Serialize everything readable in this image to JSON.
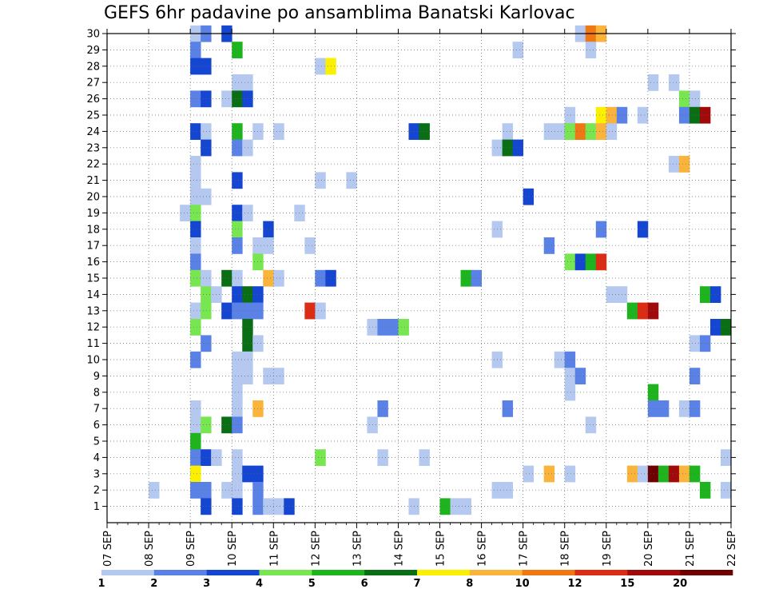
{
  "chart_data": {
    "type": "heatmap",
    "title": "GEFS 6hr padavine po ansamblima Banatski Karlovac",
    "x_tick_labels": [
      "07 SEP",
      "08 SEP",
      "09 SEP",
      "10 SEP",
      "11 SEP",
      "12 SEP",
      "13 SEP",
      "14 SEP",
      "15 SEP",
      "16 SEP",
      "17 SEP",
      "18 SEP",
      "19 SEP",
      "20 SEP",
      "21 SEP",
      "22 SEP"
    ],
    "y_tick_labels": [
      "1",
      "2",
      "3",
      "4",
      "5",
      "6",
      "7",
      "8",
      "9",
      "10",
      "11",
      "12",
      "13",
      "14",
      "15",
      "16",
      "17",
      "18",
      "19",
      "20",
      "21",
      "22",
      "23",
      "24",
      "25",
      "26",
      "27",
      "28",
      "29",
      "30"
    ],
    "ylim": [
      0,
      30
    ],
    "x_range_days": [
      0,
      15
    ],
    "grid": true,
    "legend_position": "bottom",
    "color_levels": [
      {
        "label": "1",
        "color": "#b4c8f0"
      },
      {
        "label": "2",
        "color": "#5a82e6"
      },
      {
        "label": "3",
        "color": "#1446d2"
      },
      {
        "label": "4",
        "color": "#78e650"
      },
      {
        "label": "5",
        "color": "#1eb41e"
      },
      {
        "label": "6",
        "color": "#0a6e14"
      },
      {
        "label": "7",
        "color": "#faf000"
      },
      {
        "label": "8",
        "color": "#fab43c"
      },
      {
        "label": "10",
        "color": "#f07814"
      },
      {
        "label": "12",
        "color": "#dc2d14"
      },
      {
        "label": "15",
        "color": "#a00a0a"
      },
      {
        "label": "20",
        "color": "#6e0000"
      }
    ],
    "cells": [
      [
        2.0,
        30,
        1
      ],
      [
        2.25,
        30,
        2
      ],
      [
        2.75,
        30,
        3
      ],
      [
        11.25,
        30,
        1
      ],
      [
        11.5,
        30,
        9
      ],
      [
        11.75,
        30,
        8
      ],
      [
        2.0,
        29,
        2
      ],
      [
        3.0,
        29,
        5
      ],
      [
        9.75,
        29,
        1
      ],
      [
        11.5,
        29,
        1
      ],
      [
        2.0,
        28,
        3
      ],
      [
        2.25,
        28,
        3
      ],
      [
        5.0,
        28,
        1
      ],
      [
        5.25,
        28,
        7
      ],
      [
        3.0,
        27,
        1
      ],
      [
        3.25,
        27,
        1
      ],
      [
        13.0,
        27,
        1
      ],
      [
        13.5,
        27,
        1
      ],
      [
        2.0,
        26,
        2
      ],
      [
        2.25,
        26,
        3
      ],
      [
        2.75,
        26,
        1
      ],
      [
        3.0,
        26,
        6
      ],
      [
        3.25,
        26,
        3
      ],
      [
        13.75,
        26,
        4
      ],
      [
        14.0,
        26,
        1
      ],
      [
        11.0,
        25,
        1
      ],
      [
        11.75,
        25,
        7
      ],
      [
        12.0,
        25,
        8
      ],
      [
        12.25,
        25,
        2
      ],
      [
        12.75,
        25,
        1
      ],
      [
        13.75,
        25,
        2
      ],
      [
        14.0,
        25,
        6
      ],
      [
        14.25,
        25,
        11
      ],
      [
        2.0,
        24,
        3
      ],
      [
        2.25,
        24,
        1
      ],
      [
        3.0,
        24,
        5
      ],
      [
        3.5,
        24,
        1
      ],
      [
        4.0,
        24,
        1
      ],
      [
        7.25,
        24,
        3
      ],
      [
        7.5,
        24,
        6
      ],
      [
        9.5,
        24,
        1
      ],
      [
        10.5,
        24,
        1
      ],
      [
        10.75,
        24,
        1
      ],
      [
        11.0,
        24,
        4
      ],
      [
        11.25,
        24,
        9
      ],
      [
        11.5,
        24,
        4
      ],
      [
        11.75,
        24,
        8
      ],
      [
        12.0,
        24,
        1
      ],
      [
        2.25,
        23,
        3
      ],
      [
        3.0,
        23,
        2
      ],
      [
        3.25,
        23,
        1
      ],
      [
        9.25,
        23,
        1
      ],
      [
        9.5,
        23,
        6
      ],
      [
        9.75,
        23,
        3
      ],
      [
        2.0,
        22,
        1
      ],
      [
        13.5,
        22,
        1
      ],
      [
        13.75,
        22,
        8
      ],
      [
        2.0,
        21,
        1
      ],
      [
        3.0,
        21,
        3
      ],
      [
        5.0,
        21,
        1
      ],
      [
        5.75,
        21,
        1
      ],
      [
        2.0,
        20,
        1
      ],
      [
        2.25,
        20,
        1
      ],
      [
        10.0,
        20,
        3
      ],
      [
        1.75,
        19,
        1
      ],
      [
        2.0,
        19,
        4
      ],
      [
        3.0,
        19,
        3
      ],
      [
        3.25,
        19,
        1
      ],
      [
        4.5,
        19,
        1
      ],
      [
        2.0,
        18,
        3
      ],
      [
        3.0,
        18,
        4
      ],
      [
        3.75,
        18,
        3
      ],
      [
        9.25,
        18,
        1
      ],
      [
        11.75,
        18,
        2
      ],
      [
        12.75,
        18,
        3
      ],
      [
        2.0,
        17,
        1
      ],
      [
        3.0,
        17,
        2
      ],
      [
        3.5,
        17,
        1
      ],
      [
        3.75,
        17,
        1
      ],
      [
        4.75,
        17,
        1
      ],
      [
        10.5,
        17,
        2
      ],
      [
        2.0,
        16,
        2
      ],
      [
        3.5,
        16,
        4
      ],
      [
        11.0,
        16,
        4
      ],
      [
        11.25,
        16,
        3
      ],
      [
        11.5,
        16,
        5
      ],
      [
        11.75,
        16,
        10
      ],
      [
        2.0,
        15,
        4
      ],
      [
        2.25,
        15,
        1
      ],
      [
        2.75,
        15,
        6
      ],
      [
        3.0,
        15,
        1
      ],
      [
        3.75,
        15,
        8
      ],
      [
        4.0,
        15,
        1
      ],
      [
        5.0,
        15,
        2
      ],
      [
        5.25,
        15,
        3
      ],
      [
        8.5,
        15,
        5
      ],
      [
        8.75,
        15,
        2
      ],
      [
        2.25,
        14,
        4
      ],
      [
        2.5,
        14,
        1
      ],
      [
        3.0,
        14,
        3
      ],
      [
        3.25,
        14,
        6
      ],
      [
        3.5,
        14,
        3
      ],
      [
        12.0,
        14,
        1
      ],
      [
        12.25,
        14,
        1
      ],
      [
        14.25,
        14,
        5
      ],
      [
        14.5,
        14,
        3
      ],
      [
        2.0,
        13,
        1
      ],
      [
        2.25,
        13,
        4
      ],
      [
        2.75,
        13,
        3
      ],
      [
        3.0,
        13,
        2
      ],
      [
        3.25,
        13,
        2
      ],
      [
        3.5,
        13,
        2
      ],
      [
        4.75,
        13,
        10
      ],
      [
        5.0,
        13,
        1
      ],
      [
        12.5,
        13,
        5
      ],
      [
        12.75,
        13,
        10
      ],
      [
        13.0,
        13,
        11
      ],
      [
        2.0,
        12,
        4
      ],
      [
        3.25,
        12,
        6
      ],
      [
        6.25,
        12,
        1
      ],
      [
        6.5,
        12,
        2
      ],
      [
        6.75,
        12,
        2
      ],
      [
        7.0,
        12,
        4
      ],
      [
        14.5,
        12,
        3
      ],
      [
        14.75,
        12,
        6
      ],
      [
        2.25,
        11,
        2
      ],
      [
        3.25,
        11,
        6
      ],
      [
        3.5,
        11,
        1
      ],
      [
        14.0,
        11,
        1
      ],
      [
        14.25,
        11,
        2
      ],
      [
        2.0,
        10,
        2
      ],
      [
        3.0,
        10,
        1
      ],
      [
        3.25,
        10,
        1
      ],
      [
        9.25,
        10,
        1
      ],
      [
        10.75,
        10,
        1
      ],
      [
        11.0,
        10,
        2
      ],
      [
        3.0,
        9,
        1
      ],
      [
        3.25,
        9,
        1
      ],
      [
        3.75,
        9,
        1
      ],
      [
        4.0,
        9,
        1
      ],
      [
        11.0,
        9,
        1
      ],
      [
        11.25,
        9,
        2
      ],
      [
        14.0,
        9,
        2
      ],
      [
        3.0,
        8,
        1
      ],
      [
        11.0,
        8,
        1
      ],
      [
        13.0,
        8,
        5
      ],
      [
        2.0,
        7,
        1
      ],
      [
        3.0,
        7,
        1
      ],
      [
        3.5,
        7,
        8
      ],
      [
        6.5,
        7,
        2
      ],
      [
        9.5,
        7,
        2
      ],
      [
        13.0,
        7,
        2
      ],
      [
        13.25,
        7,
        2
      ],
      [
        13.75,
        7,
        1
      ],
      [
        14.0,
        7,
        2
      ],
      [
        2.0,
        6,
        1
      ],
      [
        2.25,
        6,
        4
      ],
      [
        2.75,
        6,
        6
      ],
      [
        3.0,
        6,
        2
      ],
      [
        6.25,
        6,
        1
      ],
      [
        11.5,
        6,
        1
      ],
      [
        2.0,
        5,
        5
      ],
      [
        2.0,
        4,
        2
      ],
      [
        2.25,
        4,
        3
      ],
      [
        2.5,
        4,
        1
      ],
      [
        3.0,
        4,
        1
      ],
      [
        5.0,
        4,
        4
      ],
      [
        6.5,
        4,
        1
      ],
      [
        7.5,
        4,
        1
      ],
      [
        14.75,
        4,
        1
      ],
      [
        2.0,
        3,
        7
      ],
      [
        3.0,
        3,
        1
      ],
      [
        3.25,
        3,
        3
      ],
      [
        3.5,
        3,
        3
      ],
      [
        10.0,
        3,
        1
      ],
      [
        10.5,
        3,
        8
      ],
      [
        11.0,
        3,
        1
      ],
      [
        12.5,
        3,
        8
      ],
      [
        12.75,
        3,
        1
      ],
      [
        13.0,
        3,
        12
      ],
      [
        13.25,
        3,
        5
      ],
      [
        13.5,
        3,
        11
      ],
      [
        13.75,
        3,
        8
      ],
      [
        14.0,
        3,
        5
      ],
      [
        1.0,
        2,
        1
      ],
      [
        2.0,
        2,
        2
      ],
      [
        2.25,
        2,
        2
      ],
      [
        2.75,
        2,
        1
      ],
      [
        3.0,
        2,
        1
      ],
      [
        3.5,
        2,
        2
      ],
      [
        9.25,
        2,
        1
      ],
      [
        9.5,
        2,
        1
      ],
      [
        14.25,
        2,
        5
      ],
      [
        14.75,
        2,
        1
      ],
      [
        2.25,
        1,
        3
      ],
      [
        3.0,
        1,
        3
      ],
      [
        3.5,
        1,
        2
      ],
      [
        3.75,
        1,
        1
      ],
      [
        4.0,
        1,
        1
      ],
      [
        4.25,
        1,
        3
      ],
      [
        7.25,
        1,
        1
      ],
      [
        8.0,
        1,
        5
      ],
      [
        8.25,
        1,
        1
      ],
      [
        8.5,
        1,
        1
      ]
    ]
  }
}
